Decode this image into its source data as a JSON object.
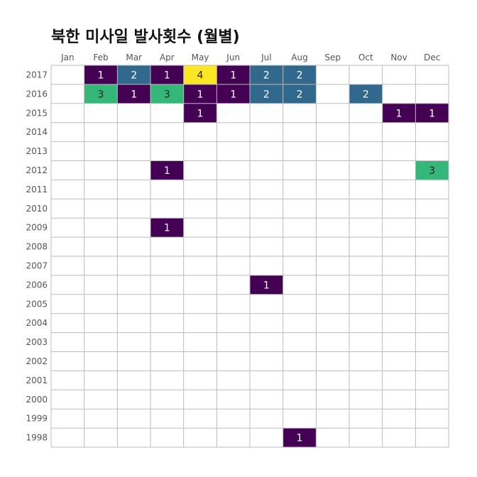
{
  "title": "북한 미사일 발사횟수 (월별)",
  "chart_data": {
    "type": "heatmap",
    "title": "북한 미사일 발사횟수 (월별)",
    "x_categories": [
      "Jan",
      "Feb",
      "Mar",
      "Apr",
      "May",
      "Jun",
      "Jul",
      "Aug",
      "Sep",
      "Oct",
      "Nov",
      "Dec"
    ],
    "y_categories": [
      "2017",
      "2016",
      "2015",
      "2014",
      "2013",
      "2012",
      "2011",
      "2010",
      "2009",
      "2008",
      "2007",
      "2006",
      "2005",
      "2004",
      "2003",
      "2002",
      "2001",
      "2000",
      "1999",
      "1998"
    ],
    "cells": [
      {
        "year": "2017",
        "month": "Feb",
        "value": 1
      },
      {
        "year": "2017",
        "month": "Mar",
        "value": 2
      },
      {
        "year": "2017",
        "month": "Apr",
        "value": 1
      },
      {
        "year": "2017",
        "month": "May",
        "value": 4
      },
      {
        "year": "2017",
        "month": "Jun",
        "value": 1
      },
      {
        "year": "2017",
        "month": "Jul",
        "value": 2
      },
      {
        "year": "2017",
        "month": "Aug",
        "value": 2
      },
      {
        "year": "2016",
        "month": "Feb",
        "value": 3
      },
      {
        "year": "2016",
        "month": "Mar",
        "value": 1
      },
      {
        "year": "2016",
        "month": "Apr",
        "value": 3
      },
      {
        "year": "2016",
        "month": "May",
        "value": 1
      },
      {
        "year": "2016",
        "month": "Jun",
        "value": 1
      },
      {
        "year": "2016",
        "month": "Jul",
        "value": 2
      },
      {
        "year": "2016",
        "month": "Aug",
        "value": 2
      },
      {
        "year": "2016",
        "month": "Oct",
        "value": 2
      },
      {
        "year": "2015",
        "month": "May",
        "value": 1
      },
      {
        "year": "2015",
        "month": "Nov",
        "value": 1
      },
      {
        "year": "2015",
        "month": "Dec",
        "value": 1
      },
      {
        "year": "2012",
        "month": "Apr",
        "value": 1
      },
      {
        "year": "2012",
        "month": "Dec",
        "value": 3
      },
      {
        "year": "2009",
        "month": "Apr",
        "value": 1
      },
      {
        "year": "2006",
        "month": "Jul",
        "value": 1
      },
      {
        "year": "1998",
        "month": "Aug",
        "value": 1
      }
    ],
    "color_scale": {
      "1": "#440154",
      "2": "#31688e",
      "3": "#35b779",
      "4": "#fde725"
    },
    "label_colors": {
      "1": "#ffffff",
      "2": "#ffffff",
      "3": "#222222",
      "4": "#222222"
    },
    "grid_color": "#bbbbbb",
    "grid": true,
    "legend": "none"
  }
}
